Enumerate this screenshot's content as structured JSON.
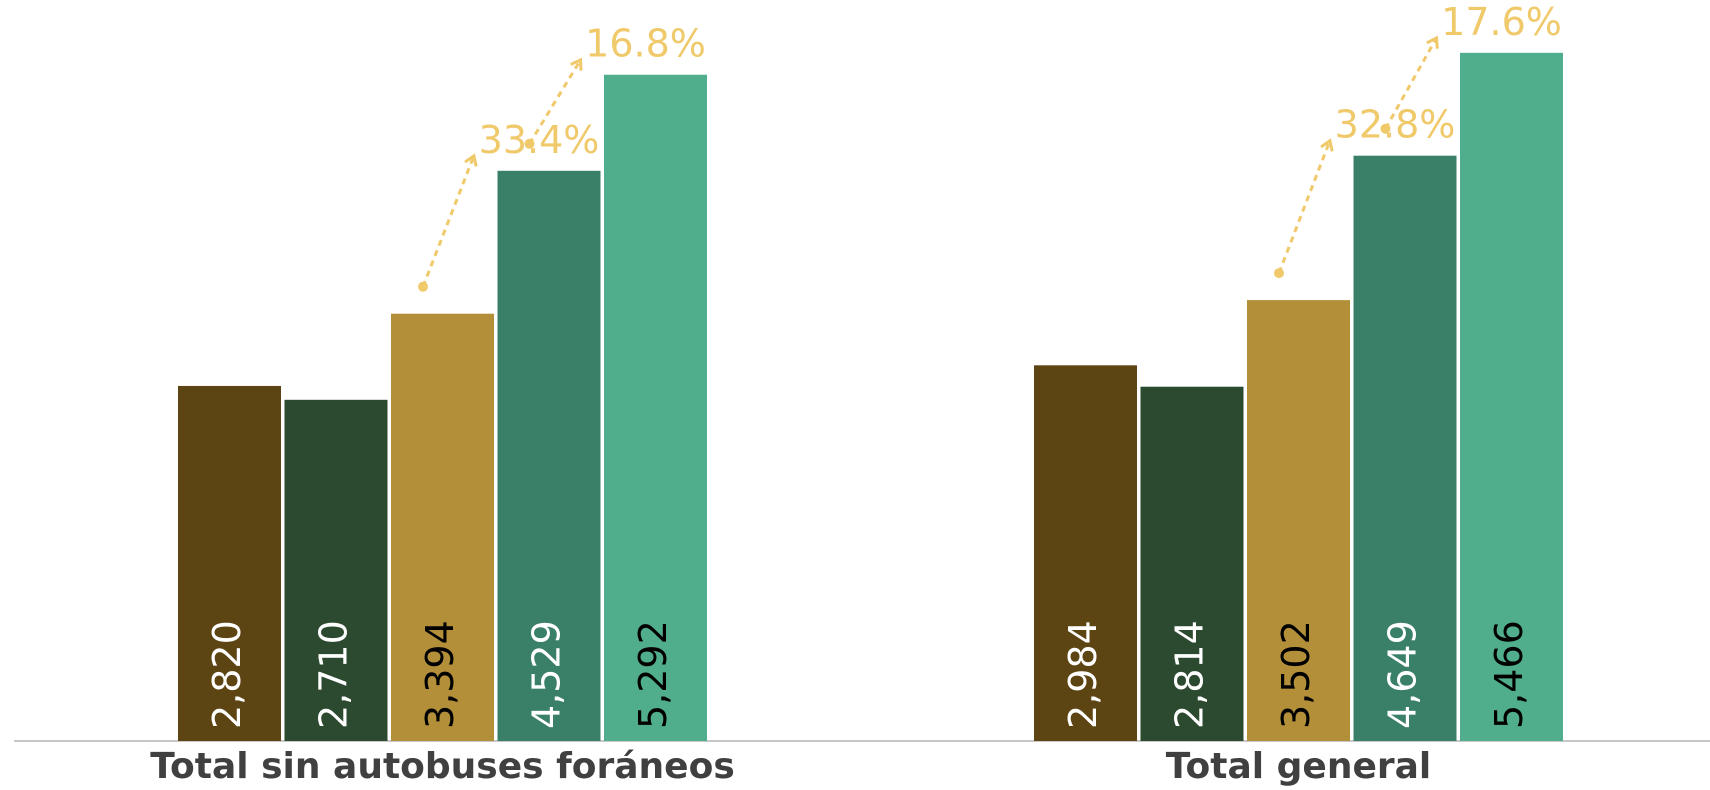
{
  "chart_data": {
    "type": "bar",
    "categories": [
      "Total sin autobuses foráneos",
      "Total general"
    ],
    "series": [
      {
        "color": "#5c4413",
        "label_color": "#ffffff",
        "values": [
          2820,
          2984
        ],
        "value_labels": [
          "2,820",
          "2,984"
        ]
      },
      {
        "color": "#2c4a30",
        "label_color": "#ffffff",
        "values": [
          2710,
          2814
        ],
        "value_labels": [
          "2,710",
          "2,814"
        ]
      },
      {
        "color": "#b38f3a",
        "label_color": "#000000",
        "values": [
          3394,
          3502
        ],
        "value_labels": [
          "3,394",
          "3,502"
        ]
      },
      {
        "color": "#3a8069",
        "label_color": "#ffffff",
        "values": [
          4529,
          4649
        ],
        "value_labels": [
          "4,529",
          "4,649"
        ]
      },
      {
        "color": "#50ae8c",
        "label_color": "#000000",
        "values": [
          5292,
          5466
        ],
        "value_labels": [
          "5,292",
          "5,466"
        ]
      }
    ],
    "annotations": [
      [
        "33.4%",
        "16.8%"
      ],
      [
        "32.8%",
        "17.6%"
      ]
    ],
    "annotation_color": "#f0c96a"
  }
}
